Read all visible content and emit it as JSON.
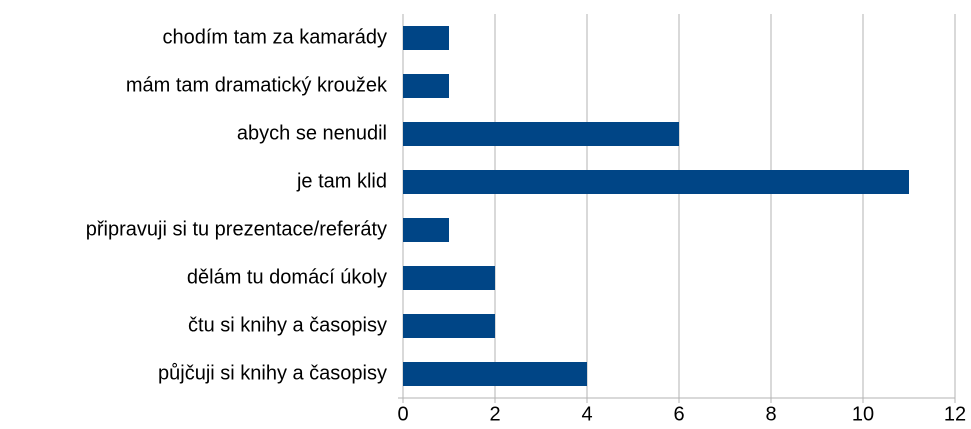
{
  "chart_data": {
    "type": "bar",
    "orientation": "horizontal",
    "categories": [
      "chodím tam za kamarády",
      "mám tam dramatický kroužek",
      "abych se nenudil",
      "je tam klid",
      "připravuji si tu prezentace/referáty",
      "dělám tu domácí úkoly",
      "čtu si knihy a časopisy",
      "půjčuji si knihy a časopisy"
    ],
    "values": [
      1,
      1,
      6,
      11,
      1,
      2,
      2,
      4
    ],
    "color": "#004586",
    "xlim": [
      0,
      12
    ],
    "xticks": [
      0,
      2,
      4,
      6,
      8,
      10,
      12
    ],
    "grid": true
  }
}
